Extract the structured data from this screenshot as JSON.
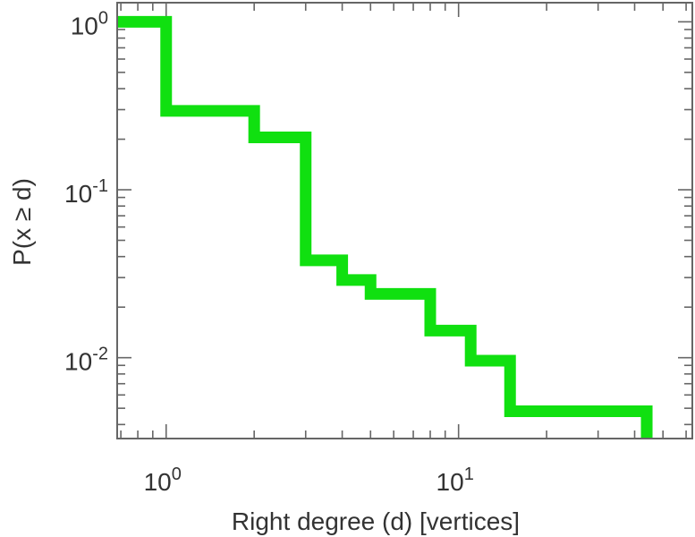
{
  "chart_data": {
    "type": "line",
    "step": "post",
    "xscale": "log",
    "yscale": "log",
    "xlim": [
      0.68,
      63
    ],
    "ylim": [
      0.0033,
      1.3
    ],
    "xlabel": "Right degree (d) [vertices]",
    "ylabel": "P(x ≥ d)",
    "grid": false,
    "legend": "none",
    "line_color": "#10e010",
    "x_ticks": [
      {
        "base": "10",
        "exp": "0",
        "value": 1
      },
      {
        "base": "10",
        "exp": "1",
        "value": 10
      }
    ],
    "y_ticks": [
      {
        "base": "10",
        "exp": "0",
        "value": 1
      },
      {
        "base": "10",
        "exp": "-1",
        "value": 0.1
      },
      {
        "base": "10",
        "exp": "-2",
        "value": 0.01
      }
    ],
    "series": [
      {
        "x": [
          0.68,
          1,
          2,
          3,
          4,
          5,
          8,
          11,
          15,
          44
        ],
        "y": [
          1.0,
          0.295,
          0.205,
          0.038,
          0.029,
          0.024,
          0.0145,
          0.0096,
          0.0048,
          0.0033
        ]
      }
    ]
  }
}
